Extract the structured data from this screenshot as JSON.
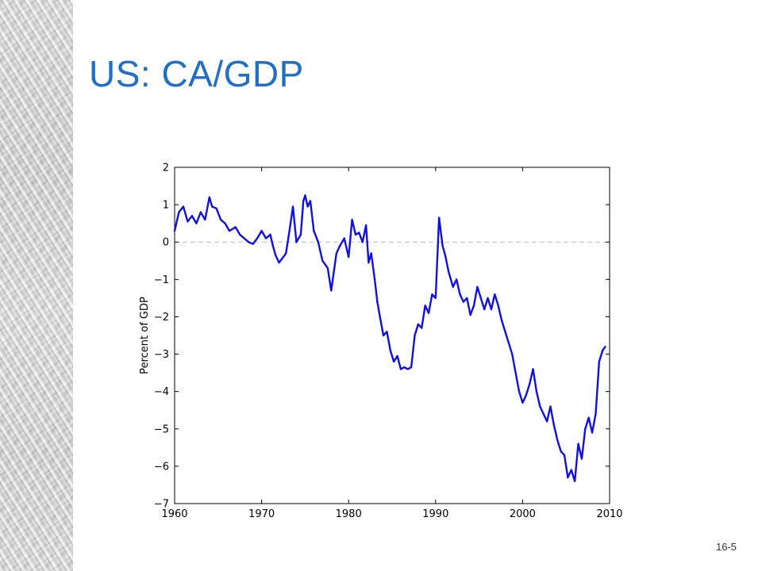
{
  "slide": {
    "title": "US: CA/GDP",
    "page_number": "16-5"
  },
  "colors": {
    "title": "#1f6fc6",
    "line": "#1010e0",
    "zero_line": "#bbbbbb"
  },
  "chart_data": {
    "type": "line",
    "title": "",
    "xlabel": "",
    "ylabel": "Percent of GDP",
    "xlim": [
      1960,
      2010
    ],
    "ylim": [
      -7,
      2
    ],
    "xticks": [
      "1960",
      "1970",
      "1980",
      "1990",
      "2000",
      "2010"
    ],
    "yticks": [
      "2",
      "1",
      "0",
      "−1",
      "−2",
      "−3",
      "−4",
      "−5",
      "−6",
      "−7"
    ],
    "grid": false,
    "reference_line": 0,
    "series": [
      {
        "name": "",
        "x": [
          1960.0,
          1960.5,
          1961.0,
          1961.5,
          1962.0,
          1962.5,
          1963.0,
          1963.5,
          1964.0,
          1964.3,
          1964.8,
          1965.3,
          1965.8,
          1966.3,
          1967.0,
          1967.5,
          1968.0,
          1968.5,
          1969.0,
          1969.5,
          1970.0,
          1970.5,
          1971.0,
          1971.3,
          1971.6,
          1972.0,
          1972.5,
          1972.8,
          1973.2,
          1973.6,
          1974.0,
          1974.5,
          1974.8,
          1975.0,
          1975.3,
          1975.6,
          1976.0,
          1976.5,
          1977.0,
          1977.3,
          1977.6,
          1978.0,
          1978.3,
          1978.6,
          1979.0,
          1979.5,
          1980.0,
          1980.4,
          1980.8,
          1981.2,
          1981.6,
          1982.0,
          1982.3,
          1982.6,
          1983.0,
          1983.3,
          1983.6,
          1984.0,
          1984.4,
          1984.8,
          1985.2,
          1985.6,
          1986.0,
          1986.4,
          1986.8,
          1987.2,
          1987.6,
          1988.0,
          1988.4,
          1988.8,
          1989.2,
          1989.6,
          1990.0,
          1990.4,
          1990.8,
          1991.1,
          1991.5,
          1992.0,
          1992.4,
          1992.8,
          1993.2,
          1993.6,
          1994.0,
          1994.4,
          1994.8,
          1995.2,
          1995.6,
          1996.0,
          1996.4,
          1996.8,
          1997.2,
          1997.6,
          1998.0,
          1998.4,
          1998.8,
          1999.2,
          1999.6,
          2000.0,
          2000.4,
          2000.8,
          2001.2,
          2001.6,
          2002.0,
          2002.4,
          2002.8,
          2003.2,
          2003.6,
          2004.0,
          2004.4,
          2004.8,
          2005.2,
          2005.6,
          2006.0,
          2006.4,
          2006.8,
          2007.2,
          2007.6,
          2008.0,
          2008.4,
          2008.8,
          2009.2,
          2009.5
        ],
        "values": [
          0.3,
          0.8,
          0.95,
          0.55,
          0.7,
          0.5,
          0.8,
          0.6,
          1.2,
          0.95,
          0.9,
          0.6,
          0.5,
          0.3,
          0.4,
          0.2,
          0.1,
          0.0,
          -0.05,
          0.1,
          0.3,
          0.1,
          0.2,
          -0.1,
          -0.35,
          -0.55,
          -0.4,
          -0.3,
          0.3,
          0.95,
          0.0,
          0.2,
          1.1,
          1.25,
          0.95,
          1.1,
          0.3,
          0.0,
          -0.5,
          -0.6,
          -0.7,
          -1.3,
          -0.8,
          -0.3,
          -0.1,
          0.1,
          -0.4,
          0.6,
          0.2,
          0.25,
          0.0,
          0.45,
          -0.55,
          -0.3,
          -1.0,
          -1.6,
          -2.0,
          -2.5,
          -2.4,
          -2.9,
          -3.2,
          -3.05,
          -3.4,
          -3.35,
          -3.4,
          -3.35,
          -2.5,
          -2.2,
          -2.3,
          -1.7,
          -1.9,
          -1.4,
          -1.5,
          0.65,
          -0.1,
          -0.35,
          -0.8,
          -1.2,
          -1.0,
          -1.4,
          -1.6,
          -1.5,
          -1.95,
          -1.7,
          -1.2,
          -1.5,
          -1.8,
          -1.5,
          -1.8,
          -1.4,
          -1.7,
          -2.1,
          -2.4,
          -2.7,
          -3.0,
          -3.5,
          -4.0,
          -4.3,
          -4.1,
          -3.8,
          -3.4,
          -4.0,
          -4.4,
          -4.6,
          -4.8,
          -4.4,
          -4.9,
          -5.3,
          -5.6,
          -5.7,
          -6.3,
          -6.1,
          -6.4,
          -5.4,
          -5.8,
          -5.0,
          -4.7,
          -5.1,
          -4.6,
          -3.2,
          -2.9,
          -2.8
        ]
      }
    ]
  }
}
